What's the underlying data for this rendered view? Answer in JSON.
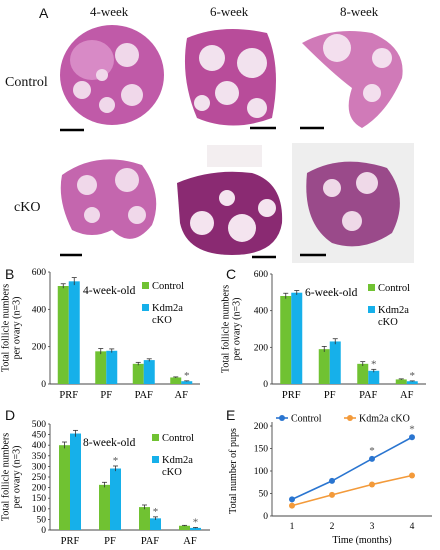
{
  "panel_a": {
    "label": "A",
    "columns": [
      "4-week",
      "6-week",
      "8-week"
    ],
    "rows": [
      "Control",
      "cKO"
    ]
  },
  "colors": {
    "control": "#70c232",
    "cko": "#16b0ea",
    "line_control": "#2a75d0",
    "line_cko": "#f39a3a",
    "tissue": "#b84c9a"
  },
  "chart_data": [
    {
      "panel": "B",
      "type": "bar",
      "title": "4-week-old",
      "categories": [
        "PRF",
        "PF",
        "PAF",
        "AF"
      ],
      "ylabel": "Total follicle numbers per ovary (n=3)",
      "yticks": [
        0,
        200,
        400,
        600
      ],
      "ylim": [
        0,
        600
      ],
      "legend": [
        "Control",
        "Kdm2a cKO"
      ],
      "legend_position": "top-right",
      "series": [
        {
          "name": "Control",
          "values": [
            525,
            175,
            108,
            35
          ],
          "errors": [
            12,
            15,
            8,
            3
          ]
        },
        {
          "name": "Kdm2a cKO",
          "values": [
            550,
            178,
            128,
            15
          ],
          "errors": [
            20,
            10,
            7,
            2
          ]
        }
      ],
      "stars": [
        {
          "category": 3,
          "series": 1
        }
      ]
    },
    {
      "panel": "C",
      "type": "bar",
      "title": "6-week-old",
      "categories": [
        "PRF",
        "PF",
        "PAF",
        "AF"
      ],
      "ylabel": "Total follicle numbers per ovary (n=3)",
      "yticks": [
        0,
        200,
        400,
        600
      ],
      "ylim": [
        0,
        600
      ],
      "legend": [
        "Control",
        "Kdm2a cKO"
      ],
      "legend_position": "top-right",
      "series": [
        {
          "name": "Control",
          "values": [
            480,
            190,
            110,
            25
          ],
          "errors": [
            15,
            15,
            12,
            3
          ]
        },
        {
          "name": "Kdm2a cKO",
          "values": [
            498,
            232,
            72,
            15
          ],
          "errors": [
            12,
            15,
            8,
            2
          ]
        }
      ],
      "stars": [
        {
          "category": 2,
          "series": 1
        },
        {
          "category": 3,
          "series": 1
        }
      ]
    },
    {
      "panel": "D",
      "type": "bar",
      "title": "8-week-old",
      "categories": [
        "PRF",
        "PF",
        "PAF",
        "AF"
      ],
      "ylabel": "Total follicle numbers per ovary (n=3)",
      "yticks": [
        0,
        50,
        100,
        150,
        200,
        250,
        300,
        350,
        400,
        450,
        500
      ],
      "ylim": [
        0,
        500
      ],
      "legend": [
        "Control",
        "Kdm2a cKO"
      ],
      "legend_position": "top-right",
      "series": [
        {
          "name": "Control",
          "values": [
            400,
            213,
            108,
            20
          ],
          "errors": [
            15,
            12,
            10,
            2
          ]
        },
        {
          "name": "Kdm2a cKO",
          "values": [
            455,
            290,
            55,
            10
          ],
          "errors": [
            15,
            12,
            7,
            2
          ]
        }
      ],
      "stars": [
        {
          "category": 1,
          "series": 1
        },
        {
          "category": 2,
          "series": 1
        },
        {
          "category": 3,
          "series": 1
        }
      ]
    },
    {
      "panel": "E",
      "type": "line",
      "x": [
        1,
        2,
        3,
        4
      ],
      "xticks": [
        1,
        2,
        3,
        4
      ],
      "xlabel": "Time (months)",
      "ylabel": "Total number of pups",
      "yticks": [
        0,
        50,
        100,
        150,
        200
      ],
      "ylim": [
        0,
        200
      ],
      "xlim": [
        0.5,
        4.5
      ],
      "legend": [
        "Control",
        "Kdm2a cKO"
      ],
      "legend_position": "top",
      "series": [
        {
          "name": "Control",
          "values": [
            37,
            78,
            127,
            175
          ]
        },
        {
          "name": "Kdm2a cKO",
          "values": [
            23,
            47,
            70,
            90
          ]
        }
      ],
      "stars": [
        {
          "x": 3
        },
        {
          "x": 4
        }
      ]
    }
  ]
}
